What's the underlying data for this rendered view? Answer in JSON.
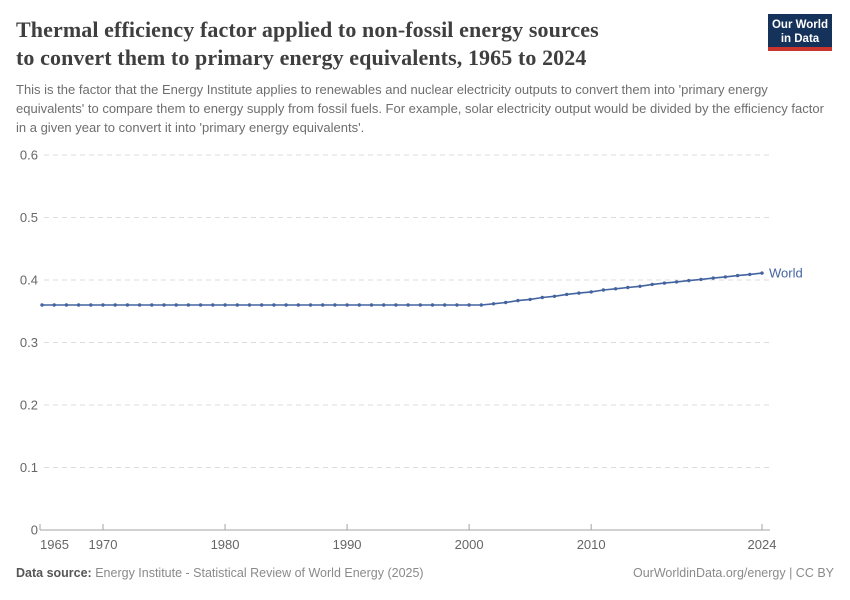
{
  "header": {
    "title_line1": "Thermal efficiency factor applied to non-fossil energy sources",
    "title_line2": "to convert them to primary energy equivalents, 1965 to 2024",
    "subtitle": "This is the factor that the Energy Institute applies to renewables and nuclear electricity outputs to convert them into 'primary energy equivalents' to compare them to energy supply from fossil fuels. For example, solar electricity output would be divided by the efficiency factor in a given year to convert it into 'primary energy equivalents'.",
    "logo_line1": "Our World",
    "logo_line2": "in Data"
  },
  "chart_data": {
    "type": "line",
    "title": "Thermal efficiency factor applied to non-fossil energy sources to convert them to primary energy equivalents, 1965 to 2024",
    "xlabel": "",
    "ylabel": "",
    "xlim": [
      1965,
      2024
    ],
    "ylim": [
      0,
      0.6
    ],
    "x_ticks": [
      1965,
      1970,
      1980,
      1990,
      2000,
      2010,
      2024
    ],
    "y_ticks": [
      0,
      0.1,
      0.2,
      0.3,
      0.4,
      0.5,
      0.6
    ],
    "grid": "horizontal-dashed",
    "legend_position": "end-of-line-label",
    "x": [
      1965,
      1966,
      1967,
      1968,
      1969,
      1970,
      1971,
      1972,
      1973,
      1974,
      1975,
      1976,
      1977,
      1978,
      1979,
      1980,
      1981,
      1982,
      1983,
      1984,
      1985,
      1986,
      1987,
      1988,
      1989,
      1990,
      1991,
      1992,
      1993,
      1994,
      1995,
      1996,
      1997,
      1998,
      1999,
      2000,
      2001,
      2002,
      2003,
      2004,
      2005,
      2006,
      2007,
      2008,
      2009,
      2010,
      2011,
      2012,
      2013,
      2014,
      2015,
      2016,
      2017,
      2018,
      2019,
      2020,
      2021,
      2022,
      2023,
      2024
    ],
    "series": [
      {
        "name": "World",
        "color": "#4464a0",
        "values": [
          0.36,
          0.36,
          0.36,
          0.36,
          0.36,
          0.36,
          0.36,
          0.36,
          0.36,
          0.36,
          0.36,
          0.36,
          0.36,
          0.36,
          0.36,
          0.36,
          0.36,
          0.36,
          0.36,
          0.36,
          0.36,
          0.36,
          0.36,
          0.36,
          0.36,
          0.36,
          0.36,
          0.36,
          0.36,
          0.36,
          0.36,
          0.36,
          0.36,
          0.36,
          0.36,
          0.36,
          0.36,
          0.362,
          0.364,
          0.367,
          0.369,
          0.372,
          0.374,
          0.377,
          0.379,
          0.381,
          0.384,
          0.386,
          0.388,
          0.39,
          0.393,
          0.395,
          0.397,
          0.399,
          0.401,
          0.403,
          0.405,
          0.407,
          0.409,
          0.411
        ]
      }
    ]
  },
  "footer": {
    "source_label": "Data source:",
    "source_text": " Energy Institute - Statistical Review of World Energy (2025)",
    "credit": "OurWorldinData.org/energy | CC BY"
  },
  "colors": {
    "line": "#4464a0",
    "grid": "#dcdcdc",
    "axis": "#a3a3a3",
    "tick_label": "#666666",
    "title": "#3f3f3f",
    "subtitle": "#6e6e6e",
    "logo_bg": "#15325a",
    "logo_stripe": "#c9342c"
  }
}
